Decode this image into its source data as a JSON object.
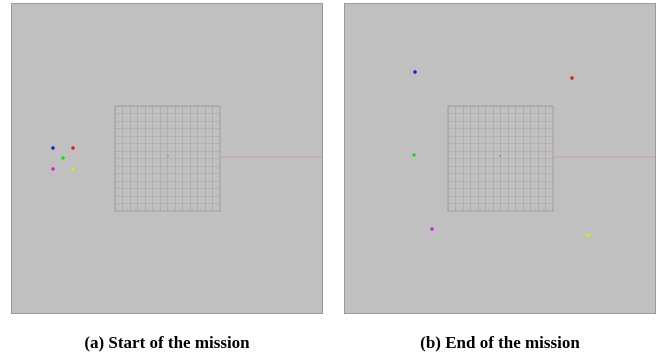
{
  "figure": {
    "panels": [
      {
        "caption": "(a) Start of the mission"
      },
      {
        "caption": "(b) End of the mission"
      }
    ]
  }
}
